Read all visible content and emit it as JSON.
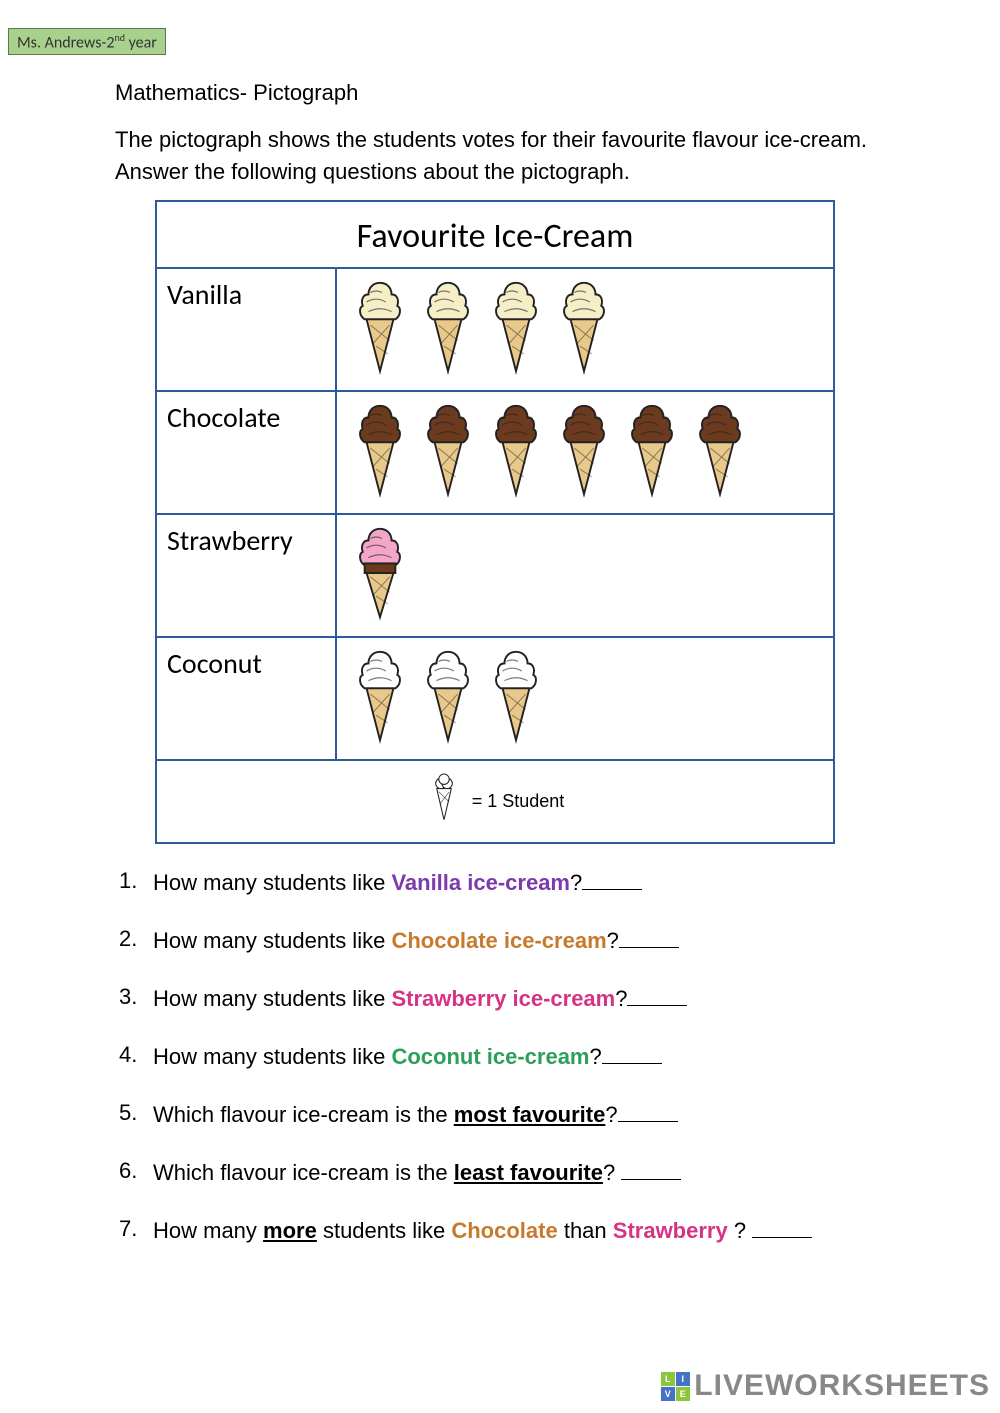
{
  "header": {
    "teacher_prefix": "Ms. Andrews-2",
    "teacher_suffix": "nd",
    "teacher_tail": " year",
    "tag_bg": "#a9d18e",
    "tag_border": "#5a7a4a"
  },
  "subject": "Mathematics- Pictograph",
  "intro": "The pictograph shows the students votes for their favourite flavour ice-cream. Answer the following questions about the pictograph.",
  "pictograph": {
    "title": "Favourite Ice-Cream",
    "border_color": "#2e5c9a",
    "rows": [
      {
        "label": "Vanilla",
        "count": 4,
        "scoop": "#f5eec7",
        "cone": "#e8c98a",
        "outline": "#222"
      },
      {
        "label": "Chocolate",
        "count": 6,
        "scoop": "#6b3a1f",
        "cone": "#e8c98a",
        "outline": "#222"
      },
      {
        "label": "Strawberry",
        "count": 1,
        "scoop": "#f4a6c8",
        "cone": "#e8c98a",
        "outline": "#222",
        "cup_band": "#6b3a1f"
      },
      {
        "label": "Coconut",
        "count": 3,
        "scoop": "#fefefe",
        "cone": "#e8c98a",
        "outline": "#222"
      }
    ],
    "legend_text": "= 1 Student",
    "legend_scoop": "#ffffff",
    "legend_outline": "#222"
  },
  "question_colors": {
    "vanilla": "#7c3aad",
    "chocolate": "#c77a2e",
    "strawberry": "#d63384",
    "coconut": "#2e9e5b"
  },
  "questions": [
    {
      "n": "1.",
      "pre": "How many students like ",
      "hl": "Vanilla ice-cream",
      "color_key": "vanilla",
      "post": "?"
    },
    {
      "n": "2.",
      "pre": "How many students like ",
      "hl": "Chocolate ice-cream",
      "color_key": "chocolate",
      "post": "?"
    },
    {
      "n": "3.",
      "pre": "How many students like ",
      "hl": "Strawberry ice-cream",
      "color_key": "strawberry",
      "post": "?"
    },
    {
      "n": "4.",
      "pre": "How many students like ",
      "hl": "Coconut ice-cream",
      "color_key": "coconut",
      "post": "?"
    },
    {
      "n": "5.",
      "pre": "Which flavour ice-cream is the ",
      "bu": "most favourite",
      "post": "?"
    },
    {
      "n": "6.",
      "pre": "Which flavour ice-cream is the ",
      "bu": "least favourite",
      "post": "? "
    },
    {
      "n": "7.",
      "pre": "How many ",
      "bu": "more",
      "mid": " students like ",
      "hl": "Chocolate",
      "color_key": "chocolate",
      "mid2": " than ",
      "hl2": "Strawberry",
      "color_key2": "strawberry",
      "post": " ? "
    }
  ],
  "watermark": "LIVEWORKSHEETS",
  "wm_colors": {
    "a": "#8cc63f",
    "b": "#4472c4"
  }
}
